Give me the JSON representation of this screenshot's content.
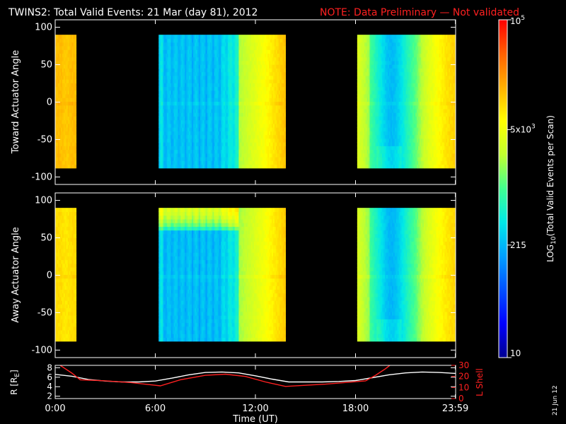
{
  "title": {
    "main": "TWINS2: Total Valid Events: 21 Mar (day  81), 2012",
    "note": "NOTE: Data Preliminary — Not validated"
  },
  "side_date": "21 Jun 12",
  "colors": {
    "background": "#000000",
    "axes": "#ffffff",
    "note": "#ff2020",
    "r_line": "#ffffff",
    "l_line": "#ff2020"
  },
  "colorbar": {
    "label": "LOG10(Total Valid Events per Scan)",
    "label_parts": {
      "pre": "LOG",
      "sub": "10",
      "post": "(Total Valid Events per Scan)"
    },
    "scale": "log",
    "range": [
      10,
      100000
    ],
    "ticks": [
      {
        "value": 100000,
        "label": "10",
        "sup": "5"
      },
      {
        "value": 5000,
        "label": "5x10",
        "sup": "3"
      },
      {
        "value": 215,
        "label": "215",
        "sup": ""
      },
      {
        "value": 10,
        "label": "10",
        "sup": ""
      }
    ],
    "colormap": [
      "#000090",
      "#0000ff",
      "#0050ff",
      "#00a0ff",
      "#00e8e8",
      "#40ff90",
      "#c0ff30",
      "#ffff00",
      "#ffb000",
      "#ff6000",
      "#ff0000"
    ]
  },
  "chart_data": [
    {
      "type": "heatmap",
      "name": "toward",
      "ylabel": "Toward Actuator Angle",
      "ylim": [
        -110,
        110
      ],
      "yticks": [
        -100,
        -50,
        0,
        50,
        100
      ],
      "xlim": [
        0,
        24
      ],
      "xticks": [
        0,
        6,
        12,
        18,
        23.983
      ],
      "angle_range": [
        -88,
        90
      ],
      "segments": [
        {
          "t0": 0.0,
          "t1": 1.25,
          "base": 13000,
          "profile": "flat"
        },
        {
          "t0": 6.2,
          "t1": 11.0,
          "base": 190,
          "profile": "dim"
        },
        {
          "t0": 11.0,
          "t1": 13.8,
          "base": 2200,
          "profile": "rising"
        },
        {
          "t0": 18.1,
          "t1": 24.0,
          "base": 900,
          "profile": "dip"
        }
      ]
    },
    {
      "type": "heatmap",
      "name": "away",
      "ylabel": "Away Actuator Angle",
      "ylim": [
        -110,
        110
      ],
      "yticks": [
        -100,
        -50,
        0,
        50,
        100
      ],
      "xlim": [
        0,
        24
      ],
      "xticks": [
        0,
        6,
        12,
        18,
        23.983
      ],
      "angle_range": [
        -88,
        90
      ],
      "segments": [
        {
          "t0": 0.0,
          "t1": 1.25,
          "base": 9000,
          "profile": "flat"
        },
        {
          "t0": 6.2,
          "t1": 11.0,
          "base": 180,
          "profile": "dim_top_band"
        },
        {
          "t0": 11.0,
          "t1": 13.8,
          "base": 2000,
          "profile": "rising"
        },
        {
          "t0": 18.1,
          "t1": 24.0,
          "base": 850,
          "profile": "dip"
        }
      ]
    },
    {
      "type": "line",
      "name": "orbit",
      "ylabel": "R [R",
      "ylabel_sub": "E",
      "ylabel_post": "]",
      "y2label": "L Shell",
      "xlabel": "Time (UT)",
      "xlim": [
        0,
        24
      ],
      "xticks": [
        0,
        6,
        12,
        18,
        23.983
      ],
      "xtick_labels": [
        "0:00",
        "6:00",
        "12:00",
        "18:00",
        "23:59"
      ],
      "ylim": [
        1.5,
        8.5
      ],
      "yticks": [
        2,
        4,
        6,
        8
      ],
      "y2lim": [
        0,
        30
      ],
      "y2ticks": [
        0,
        10,
        20,
        30
      ],
      "series": [
        {
          "name": "R",
          "axis": "left",
          "x": [
            0,
            1,
            2,
            3,
            4,
            5,
            6,
            7,
            8,
            9,
            10,
            11,
            12,
            13,
            14,
            15,
            16,
            17,
            18,
            19,
            20,
            21,
            22,
            23,
            24
          ],
          "y": [
            6.6,
            6.2,
            5.5,
            5.2,
            5.0,
            5.0,
            5.2,
            5.8,
            6.5,
            7.0,
            7.1,
            6.9,
            6.3,
            5.6,
            5.0,
            5.0,
            5.0,
            5.1,
            5.3,
            5.9,
            6.5,
            6.9,
            7.1,
            7.0,
            6.8
          ]
        },
        {
          "name": "L",
          "axis": "right",
          "x": [
            0,
            1,
            1.5,
            3,
            4.5,
            6,
            6.3,
            7.5,
            9,
            10.2,
            11.4,
            12.6,
            13.8,
            15,
            16.2,
            17.4,
            18.6,
            19.2,
            19.8,
            20.4
          ],
          "y": [
            33,
            23,
            17,
            16,
            14.5,
            12,
            11.5,
            17,
            21,
            22,
            20,
            15,
            11,
            12,
            13,
            14.5,
            16,
            21,
            27,
            34
          ]
        }
      ]
    }
  ]
}
